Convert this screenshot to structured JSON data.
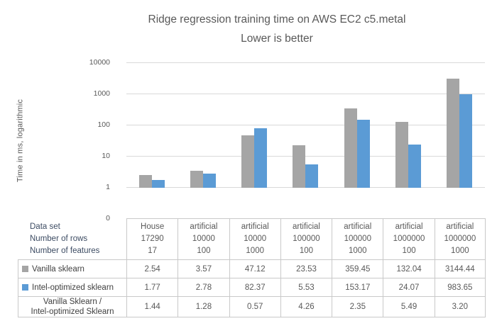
{
  "title": {
    "line1": "Ridge regression training time on AWS EC2 c5.metal",
    "line2": "Lower is better"
  },
  "y_axis": {
    "title": "Time in ms, logarithmic",
    "ticks": [
      "10000",
      "1000",
      "100",
      "10",
      "1",
      "0"
    ]
  },
  "colors": {
    "vanilla_series": "#A5A5A5",
    "intel_series": "#5B9BD5",
    "gridline": "#D9D9D9",
    "table_border": "#C9C9C9",
    "header_label_text": "#3D4C63",
    "body_text": "#595959"
  },
  "table": {
    "row_header_lines": [
      "Data set",
      "Number of rows",
      "Number of features"
    ]
  },
  "chart_data": {
    "type": "bar",
    "title": "Ridge regression training time on AWS EC2 c5.metal",
    "subtitle": "Lower is better",
    "ylabel": "Time in ms, logarithmic",
    "y_scale": "logarithmic",
    "ylim": [
      1,
      10000
    ],
    "grid": "horizontal-on",
    "legend_position": "data-table-left",
    "categories": [
      {
        "dataset": "House",
        "rows": "17290",
        "features": "17"
      },
      {
        "dataset": "artificial",
        "rows": "10000",
        "features": "100"
      },
      {
        "dataset": "artificial",
        "rows": "10000",
        "features": "1000"
      },
      {
        "dataset": "artificial",
        "rows": "100000",
        "features": "100"
      },
      {
        "dataset": "artificial",
        "rows": "100000",
        "features": "1000"
      },
      {
        "dataset": "artificial",
        "rows": "1000000",
        "features": "100"
      },
      {
        "dataset": "artificial",
        "rows": "1000000",
        "features": "1000"
      }
    ],
    "series": [
      {
        "name": "Vanilla sklearn",
        "color": "#A5A5A5",
        "values": [
          2.54,
          3.57,
          47.12,
          23.53,
          359.45,
          132.04,
          3144.44
        ]
      },
      {
        "name": "Intel-optimized sklearn",
        "color": "#5B9BD5",
        "values": [
          1.77,
          2.78,
          82.37,
          5.53,
          153.17,
          24.07,
          983.65
        ]
      }
    ],
    "ratio_row": {
      "label_lines": [
        "Vanilla Sklearn /",
        "Intel-optimized Sklearn"
      ],
      "values": [
        1.44,
        1.28,
        0.57,
        4.26,
        2.35,
        5.49,
        3.2
      ]
    }
  }
}
